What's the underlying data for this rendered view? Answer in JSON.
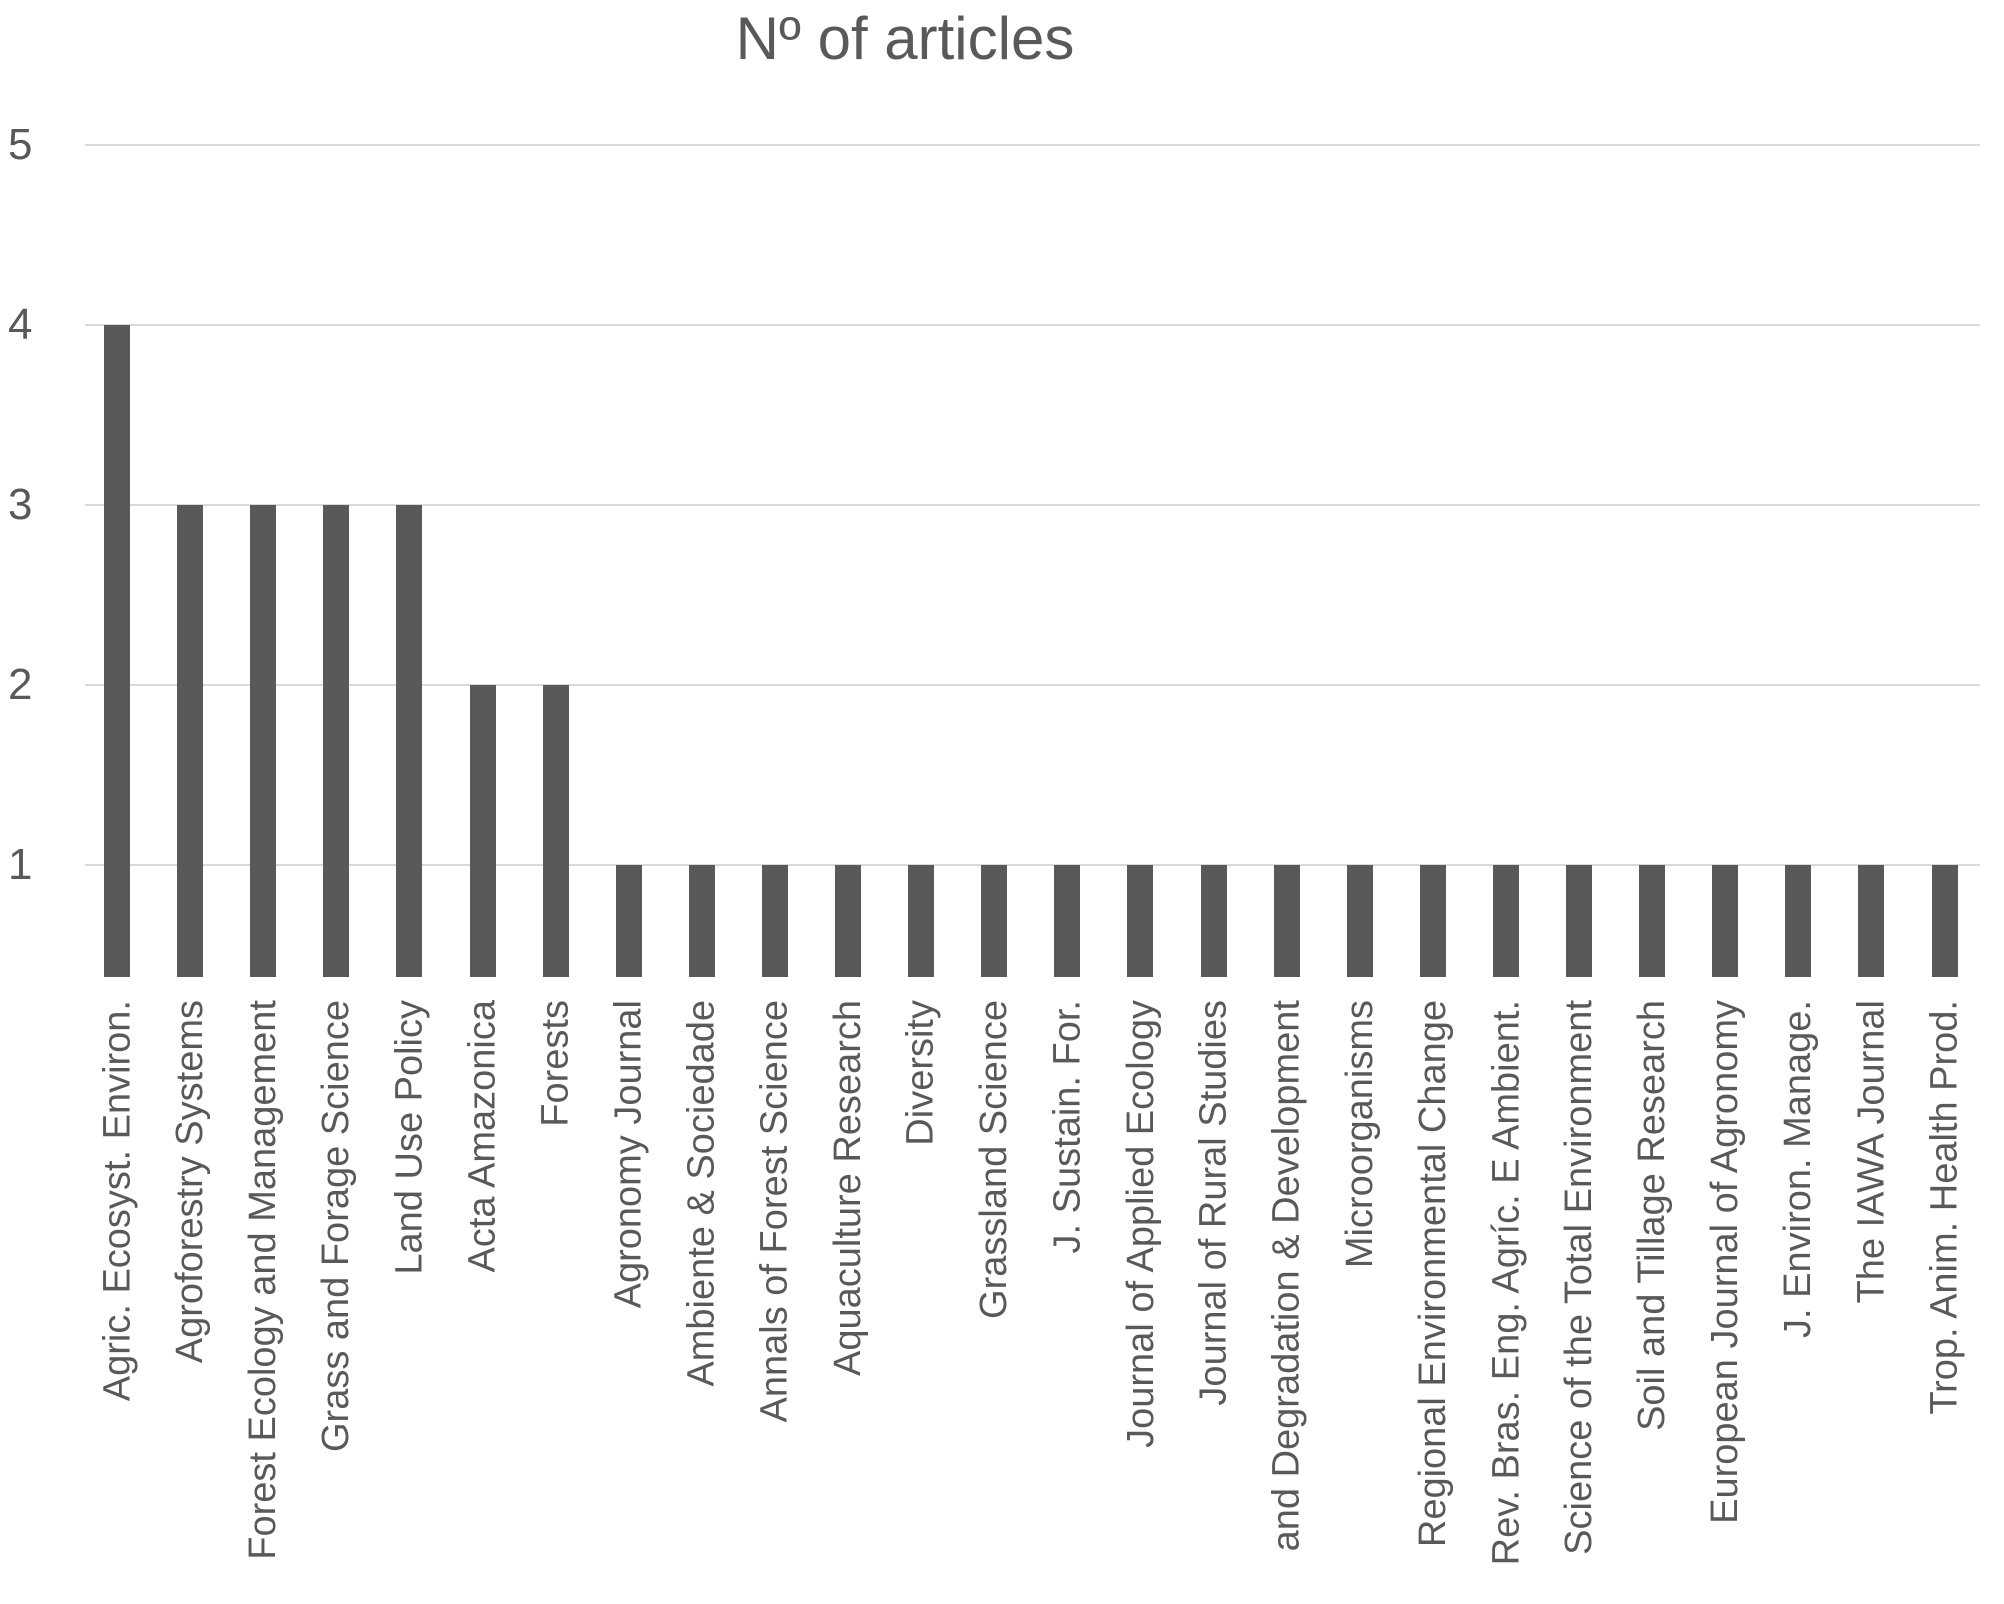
{
  "chart_data": {
    "type": "bar",
    "title": "Nº of articles",
    "categories": [
      "Agric. Ecosyst. Environ.",
      "Agroforestry Systems",
      "Forest Ecology and Management",
      "Grass and Forage Science",
      "Land Use Policy",
      "Acta Amazonica",
      "Forests",
      "Agronomy Journal",
      "Ambiente & Sociedade",
      "Annals of Forest Science",
      "Aquaculture Research",
      "Diversity",
      "Grassland Science",
      "J. Sustain. For.",
      "Journal of Applied Ecology",
      "Journal of Rural Studies",
      "and Degradation & Development",
      "Microorganisms",
      "Regional Environmental Change",
      "Rev. Bras. Eng. Agríc. E Ambient.",
      "Science of the Total Environment",
      "Soil and Tillage Research",
      "European Journal of Agronomy",
      "J. Environ. Manage.",
      "The IAWA Journal",
      "Trop. Anim. Health Prod."
    ],
    "values": [
      4,
      3,
      3,
      3,
      3,
      2,
      2,
      1,
      1,
      1,
      1,
      1,
      1,
      1,
      1,
      1,
      1,
      1,
      1,
      1,
      1,
      1,
      1,
      1,
      1,
      1
    ],
    "y_ticks": [
      1,
      2,
      3,
      4,
      5
    ],
    "ylim": [
      0,
      5
    ],
    "xlabel": "",
    "ylabel": "",
    "legend_position": "none",
    "grid": "horizontal",
    "bar_color": "#595959",
    "gridline_color": "#d9d9d9",
    "text_color": "#595959"
  }
}
